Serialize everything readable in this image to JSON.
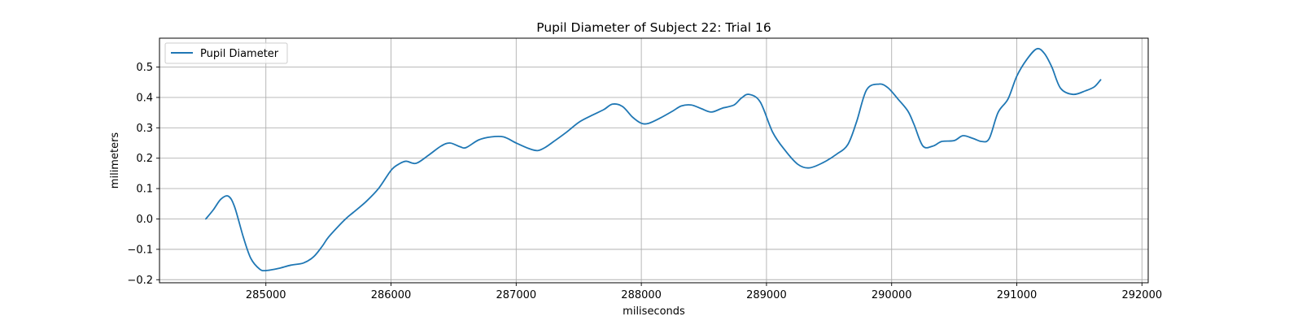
{
  "chart_data": {
    "type": "line",
    "title": "Pupil Diameter of Subject 22: Trial 16",
    "xlabel": "miliseconds",
    "ylabel": "milimeters",
    "xlim": [
      284150,
      292050
    ],
    "ylim": [
      -0.21,
      0.595
    ],
    "grid": true,
    "legend_position": "upper-left",
    "x_ticks": [
      285000,
      286000,
      287000,
      288000,
      289000,
      290000,
      291000,
      292000
    ],
    "y_ticks": [
      -0.2,
      -0.1,
      0.0,
      0.1,
      0.2,
      0.3,
      0.4,
      0.5
    ],
    "y_tick_labels": [
      "−0.2",
      "−0.1",
      "0.0",
      "0.1",
      "0.2",
      "0.3",
      "0.4",
      "0.5"
    ],
    "colors": {
      "line": "#1f77b4",
      "grid": "#b0b0b0"
    },
    "series": [
      {
        "name": "Pupil Diameter",
        "x": [
          284520,
          284580,
          284640,
          284700,
          284750,
          284820,
          284880,
          284950,
          285000,
          285100,
          285200,
          285300,
          285380,
          285450,
          285500,
          285600,
          285650,
          285700,
          285800,
          285900,
          286000,
          286060,
          286120,
          286200,
          286300,
          286400,
          286470,
          286550,
          286600,
          286700,
          286800,
          286900,
          287000,
          287100,
          287170,
          287230,
          287300,
          287400,
          287500,
          287600,
          287700,
          287770,
          287850,
          287930,
          288000,
          288060,
          288150,
          288250,
          288320,
          288400,
          288480,
          288560,
          288650,
          288740,
          288800,
          288860,
          288950,
          289050,
          289150,
          289250,
          289340,
          289450,
          289560,
          289650,
          289720,
          289800,
          289900,
          289970,
          290050,
          290130,
          290180,
          290250,
          290330,
          290400,
          290500,
          290570,
          290650,
          290720,
          290780,
          290850,
          290930,
          291000,
          291080,
          291160,
          291220,
          291280,
          291350,
          291450,
          291550,
          291620,
          291670
        ],
        "y": [
          0.0,
          0.03,
          0.065,
          0.075,
          0.04,
          -0.06,
          -0.13,
          -0.165,
          -0.17,
          -0.163,
          -0.152,
          -0.145,
          -0.125,
          -0.09,
          -0.06,
          -0.015,
          0.005,
          0.022,
          0.057,
          0.1,
          0.16,
          0.18,
          0.19,
          0.183,
          0.21,
          0.24,
          0.25,
          0.238,
          0.235,
          0.26,
          0.27,
          0.27,
          0.25,
          0.232,
          0.225,
          0.235,
          0.255,
          0.285,
          0.318,
          0.34,
          0.36,
          0.378,
          0.37,
          0.335,
          0.315,
          0.315,
          0.332,
          0.355,
          0.372,
          0.375,
          0.363,
          0.352,
          0.365,
          0.375,
          0.398,
          0.41,
          0.385,
          0.285,
          0.225,
          0.18,
          0.168,
          0.185,
          0.213,
          0.245,
          0.32,
          0.425,
          0.444,
          0.432,
          0.395,
          0.355,
          0.31,
          0.24,
          0.24,
          0.255,
          0.258,
          0.274,
          0.265,
          0.255,
          0.265,
          0.35,
          0.395,
          0.47,
          0.525,
          0.56,
          0.545,
          0.5,
          0.43,
          0.41,
          0.422,
          0.435,
          0.458
        ]
      }
    ]
  }
}
